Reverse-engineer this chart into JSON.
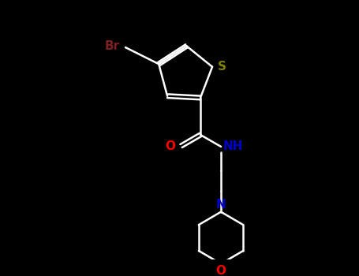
{
  "background_color": "#000000",
  "bond_color": "#ffffff",
  "br_color": "#7B2020",
  "s_color": "#808000",
  "o_color": "#ff0000",
  "n_color": "#0000cd",
  "label_Br": "Br",
  "label_S": "S",
  "label_O": "O",
  "label_NH": "NH",
  "label_N": "N",
  "label_O2": "O",
  "figsize": [
    4.55,
    3.5
  ],
  "dpi": 100
}
